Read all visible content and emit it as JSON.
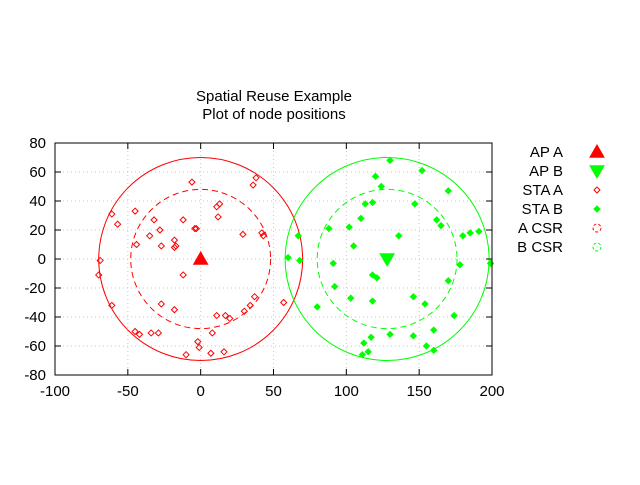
{
  "chart_data": {
    "type": "scatter",
    "title": "Spatial Reuse Example",
    "subtitle": "Plot of node positions",
    "xlabel": "",
    "ylabel": "",
    "xlim": [
      -100,
      200
    ],
    "ylim": [
      -80,
      80
    ],
    "x_ticks": [
      -100,
      -50,
      0,
      50,
      100,
      150,
      200
    ],
    "y_ticks": [
      -80,
      -60,
      -40,
      -20,
      0,
      20,
      40,
      60,
      80
    ],
    "grid": true,
    "legend_position": "outside-right",
    "colors": {
      "a": "#ff0000",
      "b": "#00ff00",
      "axis": "#000000",
      "grid": "#c8c8c8"
    },
    "series": [
      {
        "name": "AP A",
        "marker": "triangle-up-filled",
        "color": "#ff0000",
        "points": [
          [
            0,
            0
          ]
        ]
      },
      {
        "name": "AP B",
        "marker": "triangle-down-filled",
        "color": "#00ff00",
        "points": [
          [
            128,
            0
          ]
        ]
      },
      {
        "name": "STA A",
        "marker": "diamond-open",
        "color": "#ff0000",
        "points": [
          [
            -6,
            53
          ],
          [
            38,
            56
          ],
          [
            36,
            51
          ],
          [
            -61,
            31
          ],
          [
            -57,
            24
          ],
          [
            -45,
            33
          ],
          [
            -44,
            10
          ],
          [
            -32,
            27
          ],
          [
            -12,
            27
          ],
          [
            -18,
            13
          ],
          [
            -28,
            20
          ],
          [
            -27,
            9
          ],
          [
            -18,
            8
          ],
          [
            -17,
            9
          ],
          [
            -35,
            16
          ],
          [
            -3,
            21
          ],
          [
            -4,
            21
          ],
          [
            11,
            36
          ],
          [
            13,
            38
          ],
          [
            12,
            29
          ],
          [
            42,
            18
          ],
          [
            43,
            16
          ],
          [
            29,
            17
          ],
          [
            -12,
            -11
          ],
          [
            -69,
            -1
          ],
          [
            -70,
            -11
          ],
          [
            -27,
            -31
          ],
          [
            -18,
            -35
          ],
          [
            -61,
            -32
          ],
          [
            -45,
            -50
          ],
          [
            -42,
            -52
          ],
          [
            -34,
            -51
          ],
          [
            -29,
            -51
          ],
          [
            -2,
            -57
          ],
          [
            -1,
            -61
          ],
          [
            -10,
            -66
          ],
          [
            8,
            -51
          ],
          [
            11,
            -39
          ],
          [
            17,
            -39
          ],
          [
            20,
            -41
          ],
          [
            30,
            -36
          ],
          [
            34,
            -32
          ],
          [
            37,
            -26
          ],
          [
            57,
            -30
          ],
          [
            16,
            -64
          ],
          [
            7,
            -65
          ]
        ]
      },
      {
        "name": "STA B",
        "marker": "diamond-filled",
        "color": "#00ff00",
        "points": [
          [
            130,
            68
          ],
          [
            120,
            57
          ],
          [
            124,
            50
          ],
          [
            152,
            61
          ],
          [
            170,
            47
          ],
          [
            147,
            38
          ],
          [
            113,
            38
          ],
          [
            118,
            39
          ],
          [
            110,
            28
          ],
          [
            102,
            22
          ],
          [
            88,
            21
          ],
          [
            162,
            27
          ],
          [
            165,
            23
          ],
          [
            180,
            16
          ],
          [
            185,
            18
          ],
          [
            191,
            19
          ],
          [
            136,
            16
          ],
          [
            105,
            9
          ],
          [
            91,
            -3
          ],
          [
            118,
            -11
          ],
          [
            121,
            -13
          ],
          [
            118,
            -29
          ],
          [
            103,
            -27
          ],
          [
            92,
            -19
          ],
          [
            80,
            -33
          ],
          [
            67,
            16
          ],
          [
            68,
            -1
          ],
          [
            60,
            1
          ],
          [
            146,
            -26
          ],
          [
            154,
            -31
          ],
          [
            170,
            -15
          ],
          [
            178,
            -4
          ],
          [
            199,
            -3
          ],
          [
            174,
            -39
          ],
          [
            112,
            -58
          ],
          [
            117,
            -54
          ],
          [
            115,
            -64
          ],
          [
            111,
            -66
          ],
          [
            130,
            -52
          ],
          [
            146,
            -53
          ],
          [
            160,
            -49
          ],
          [
            155,
            -60
          ],
          [
            160,
            -63
          ]
        ]
      },
      {
        "name": "A CSR",
        "marker": "open-circle-small",
        "color": "#ff0000",
        "circles": [
          {
            "center": [
              0,
              0
            ],
            "radius": 70,
            "style": "solid"
          },
          {
            "center": [
              0,
              0
            ],
            "radius": 48,
            "style": "dashed"
          }
        ]
      },
      {
        "name": "B CSR",
        "marker": "open-circle-small",
        "color": "#00ff00",
        "circles": [
          {
            "center": [
              128,
              0
            ],
            "radius": 70,
            "style": "solid"
          },
          {
            "center": [
              128,
              0
            ],
            "radius": 48,
            "style": "dashed"
          }
        ]
      }
    ]
  }
}
